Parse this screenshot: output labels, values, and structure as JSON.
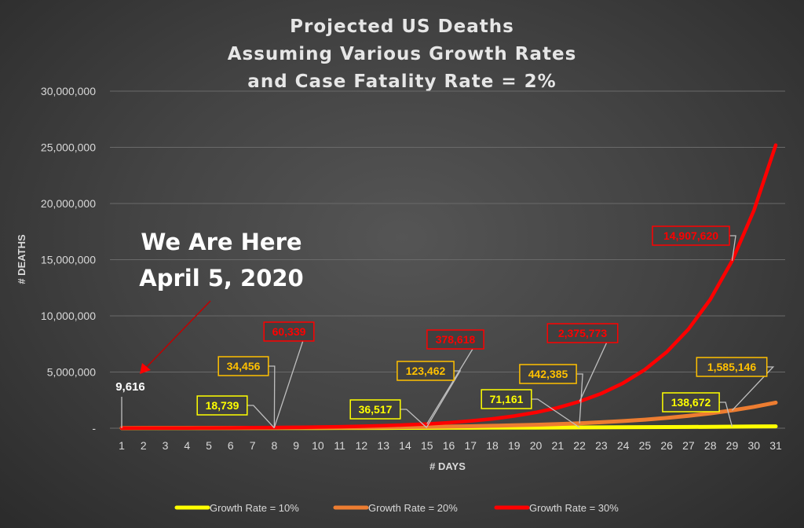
{
  "chart_data": {
    "type": "line",
    "title": [
      "Projected US Deaths",
      "Assuming Various Growth Rates",
      "and Case Fatality Rate = 2%"
    ],
    "xlabel": "# DAYS",
    "ylabel": "# DEATHS",
    "x": [
      1,
      2,
      3,
      4,
      5,
      6,
      7,
      8,
      9,
      10,
      11,
      12,
      13,
      14,
      15,
      16,
      17,
      18,
      19,
      20,
      21,
      22,
      23,
      24,
      25,
      26,
      27,
      28,
      29,
      30,
      31
    ],
    "ylim": [
      0,
      30000000
    ],
    "yticks": [
      0,
      5000000,
      10000000,
      15000000,
      20000000,
      25000000,
      30000000
    ],
    "ytick_labels": [
      "-",
      "5,000,000",
      "10,000,000",
      "15,000,000",
      "20,000,000",
      "25,000,000",
      "30,000,000"
    ],
    "grid": true,
    "legend": "bottom",
    "series": [
      {
        "name": "Growth Rate = 10%",
        "color": "#ffff00",
        "values": [
          9616,
          10578,
          11635,
          12799,
          14079,
          15487,
          17036,
          18739,
          20613,
          22674,
          24942,
          27436,
          30180,
          33198,
          36517,
          40169,
          44186,
          48605,
          53465,
          58812,
          64693,
          71161,
          78278,
          86105,
          94716,
          104188,
          114606,
          126067,
          138672,
          152540,
          167794
        ]
      },
      {
        "name": "Growth Rate = 20%",
        "color": "#ed7d31",
        "values": [
          9616,
          11539,
          13847,
          16617,
          19940,
          23928,
          28713,
          34456,
          41347,
          49617,
          59540,
          71448,
          85738,
          102885,
          123462,
          148155,
          177786,
          213343,
          256011,
          307214,
          368657,
          442385,
          530862,
          637034,
          764441,
          917329,
          1100795,
          1320954,
          1585146,
          1902175,
          2282610
        ]
      },
      {
        "name": "Growth Rate = 30%",
        "color": "#ff0000",
        "values": [
          9616,
          12501,
          16251,
          21126,
          27464,
          35703,
          46414,
          60339,
          78440,
          101973,
          132564,
          172334,
          224034,
          291244,
          378618,
          492203,
          639864,
          831823,
          1081370,
          1405781,
          1827515,
          2375773,
          3088504,
          4015055,
          5219572,
          6785443,
          8821076,
          11467399,
          14907620,
          19379906,
          25193878
        ]
      }
    ],
    "data_labels": [
      {
        "series": 0,
        "x": 8,
        "text": "18,739"
      },
      {
        "series": 0,
        "x": 15,
        "text": "36,517"
      },
      {
        "series": 0,
        "x": 22,
        "text": "71,161"
      },
      {
        "series": 0,
        "x": 29,
        "text": "138,672"
      },
      {
        "series": 1,
        "x": 8,
        "text": "34,456"
      },
      {
        "series": 1,
        "x": 15,
        "text": "123,462"
      },
      {
        "series": 1,
        "x": 22,
        "text": "442,385"
      },
      {
        "series": 1,
        "x": 29,
        "text": "1,585,146"
      },
      {
        "series": 2,
        "x": 8,
        "text": "60,339"
      },
      {
        "series": 2,
        "x": 15,
        "text": "378,618"
      },
      {
        "series": 2,
        "x": 22,
        "text": "2,375,773"
      },
      {
        "series": 2,
        "x": 29,
        "text": "14,907,620"
      }
    ],
    "start_label": "9,616",
    "annotation": [
      "We Are Here",
      "April 5, 2020"
    ]
  }
}
